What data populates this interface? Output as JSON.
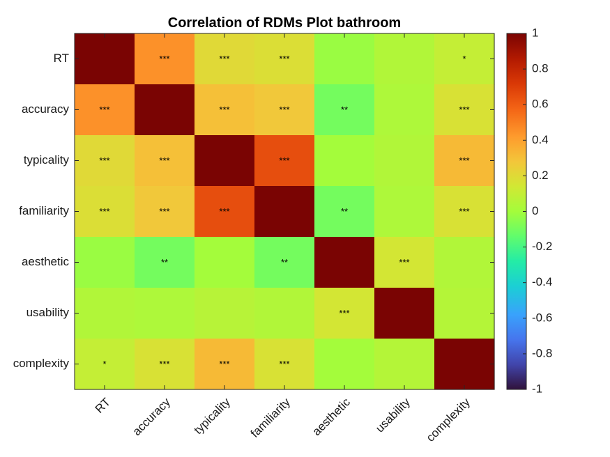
{
  "chart_data": {
    "type": "heatmap",
    "title": "Correlation of RDMs Plot bathroom",
    "xlabel": "",
    "ylabel": "",
    "rows": [
      "RT",
      "accuracy",
      "typicality",
      "familiarity",
      "aesthetic",
      "usability",
      "complexity"
    ],
    "cols": [
      "RT",
      "accuracy",
      "typicality",
      "familiarity",
      "aesthetic",
      "usability",
      "complexity"
    ],
    "values": [
      [
        1.0,
        0.45,
        0.2,
        0.18,
        -0.02,
        0.04,
        0.1
      ],
      [
        0.45,
        1.0,
        0.3,
        0.27,
        -0.1,
        0.03,
        0.17
      ],
      [
        0.2,
        0.3,
        1.0,
        0.65,
        0.0,
        0.04,
        0.32
      ],
      [
        0.18,
        0.27,
        0.65,
        1.0,
        -0.1,
        0.03,
        0.17
      ],
      [
        -0.02,
        -0.1,
        0.0,
        -0.1,
        1.0,
        0.15,
        0.04
      ],
      [
        0.04,
        0.03,
        0.06,
        0.04,
        0.15,
        1.0,
        0.05
      ],
      [
        0.1,
        0.17,
        0.32,
        0.17,
        0.0,
        0.05,
        1.0
      ]
    ],
    "significance": [
      [
        "",
        "***",
        "***",
        "***",
        "",
        "",
        "*"
      ],
      [
        "***",
        "",
        "***",
        "***",
        "**",
        "",
        "***"
      ],
      [
        "***",
        "***",
        "",
        "***",
        "",
        "",
        "***"
      ],
      [
        "***",
        "***",
        "***",
        "",
        "**",
        "",
        "***"
      ],
      [
        "",
        "**",
        "",
        "**",
        "",
        "***",
        ""
      ],
      [
        "",
        "",
        "",
        "",
        "***",
        "",
        ""
      ],
      [
        "*",
        "***",
        "***",
        "***",
        "",
        "",
        ""
      ]
    ],
    "colorbar": {
      "colormap": "turbo",
      "range": [
        -1,
        1
      ],
      "ticks": [
        "1",
        "0.8",
        "0.6",
        "0.4",
        "0.2",
        "0",
        "-0.2",
        "-0.4",
        "-0.6",
        "-0.8",
        "-1"
      ]
    }
  }
}
